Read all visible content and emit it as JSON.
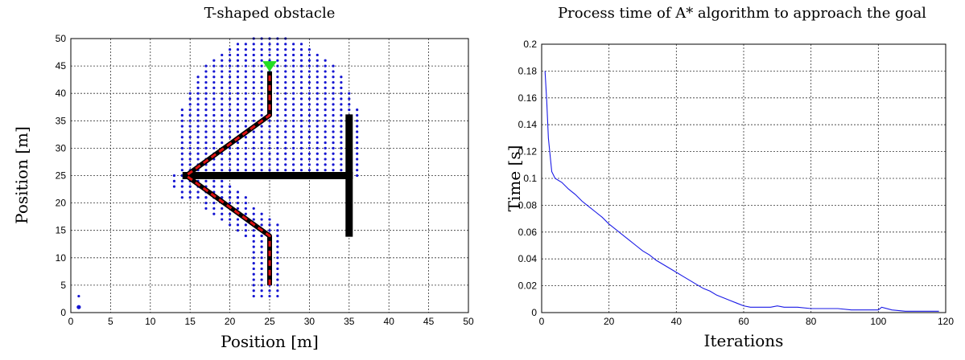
{
  "chart_data": [
    {
      "type": "scatter",
      "title": "T-shaped obstacle",
      "xlabel": "Position [m]",
      "ylabel": "Position [m]",
      "xlim": [
        0,
        50
      ],
      "ylim": [
        0,
        50
      ],
      "xticks": [
        "0",
        "5",
        "10",
        "15",
        "20",
        "25",
        "30",
        "35",
        "40",
        "45",
        "50"
      ],
      "yticks": [
        "0",
        "5",
        "10",
        "15",
        "20",
        "25",
        "30",
        "35",
        "40",
        "45",
        "50"
      ],
      "grid": true,
      "colors": {
        "explored": "#1414d2",
        "path": "#dd1111",
        "path_nodes": "#000000",
        "obstacle": "#000000",
        "goal": "#22dd22",
        "start": "#1414d2"
      },
      "start": [
        1,
        1
      ],
      "goal": [
        25,
        45
      ],
      "obstacle": [
        {
          "from": [
            14.5,
            25
          ],
          "to": [
            35,
            25
          ]
        },
        {
          "from": [
            35,
            14.5
          ],
          "to": [
            35,
            35.5
          ]
        }
      ],
      "path": [
        [
          25,
          5
        ],
        [
          25,
          14
        ],
        [
          14.5,
          25
        ],
        [
          25,
          36
        ],
        [
          25,
          44
        ]
      ],
      "explored_clusters": [
        {
          "x": [
            23,
            26
          ],
          "y": [
            3,
            14
          ]
        },
        {
          "x": [
            17,
            26
          ],
          "y": [
            14,
            21
          ]
        },
        {
          "x": [
            13,
            24
          ],
          "y": [
            21,
            25
          ]
        }
      ]
    },
    {
      "type": "line",
      "title": "Process time of A* algorithm to approach the goal",
      "xlabel": "Iterations",
      "ylabel": "Time [s]",
      "xlim": [
        0,
        120
      ],
      "ylim": [
        0,
        0.2
      ],
      "xticks": [
        "0",
        "20",
        "40",
        "60",
        "80",
        "100",
        "120"
      ],
      "yticks": [
        "0",
        "0.02",
        "0.04",
        "0.06",
        "0.08",
        "0.1",
        "0.12",
        "0.14",
        "0.16",
        "0.18",
        "0.2"
      ],
      "grid": true,
      "line_color": "#1a1ae6",
      "series": [
        {
          "x": [
            1,
            1.5,
            2,
            3,
            4,
            6,
            8,
            10,
            12,
            14,
            16,
            18,
            20,
            22,
            24,
            26,
            28,
            30,
            32,
            34,
            36,
            38,
            40,
            42,
            44,
            46,
            48,
            50,
            52,
            54,
            56,
            58,
            60,
            62,
            64,
            66,
            68,
            70,
            72,
            76,
            80,
            84,
            88,
            92,
            96,
            100,
            101,
            104,
            108,
            112,
            116,
            118
          ],
          "y": [
            0.18,
            0.158,
            0.13,
            0.105,
            0.1,
            0.097,
            0.092,
            0.088,
            0.083,
            0.079,
            0.075,
            0.071,
            0.066,
            0.062,
            0.058,
            0.054,
            0.05,
            0.046,
            0.043,
            0.039,
            0.036,
            0.033,
            0.03,
            0.027,
            0.024,
            0.021,
            0.018,
            0.016,
            0.013,
            0.011,
            0.009,
            0.007,
            0.005,
            0.004,
            0.004,
            0.004,
            0.004,
            0.005,
            0.004,
            0.004,
            0.003,
            0.003,
            0.003,
            0.002,
            0.002,
            0.002,
            0.004,
            0.002,
            0.001,
            0.001,
            0.001,
            0.001
          ]
        }
      ]
    }
  ]
}
